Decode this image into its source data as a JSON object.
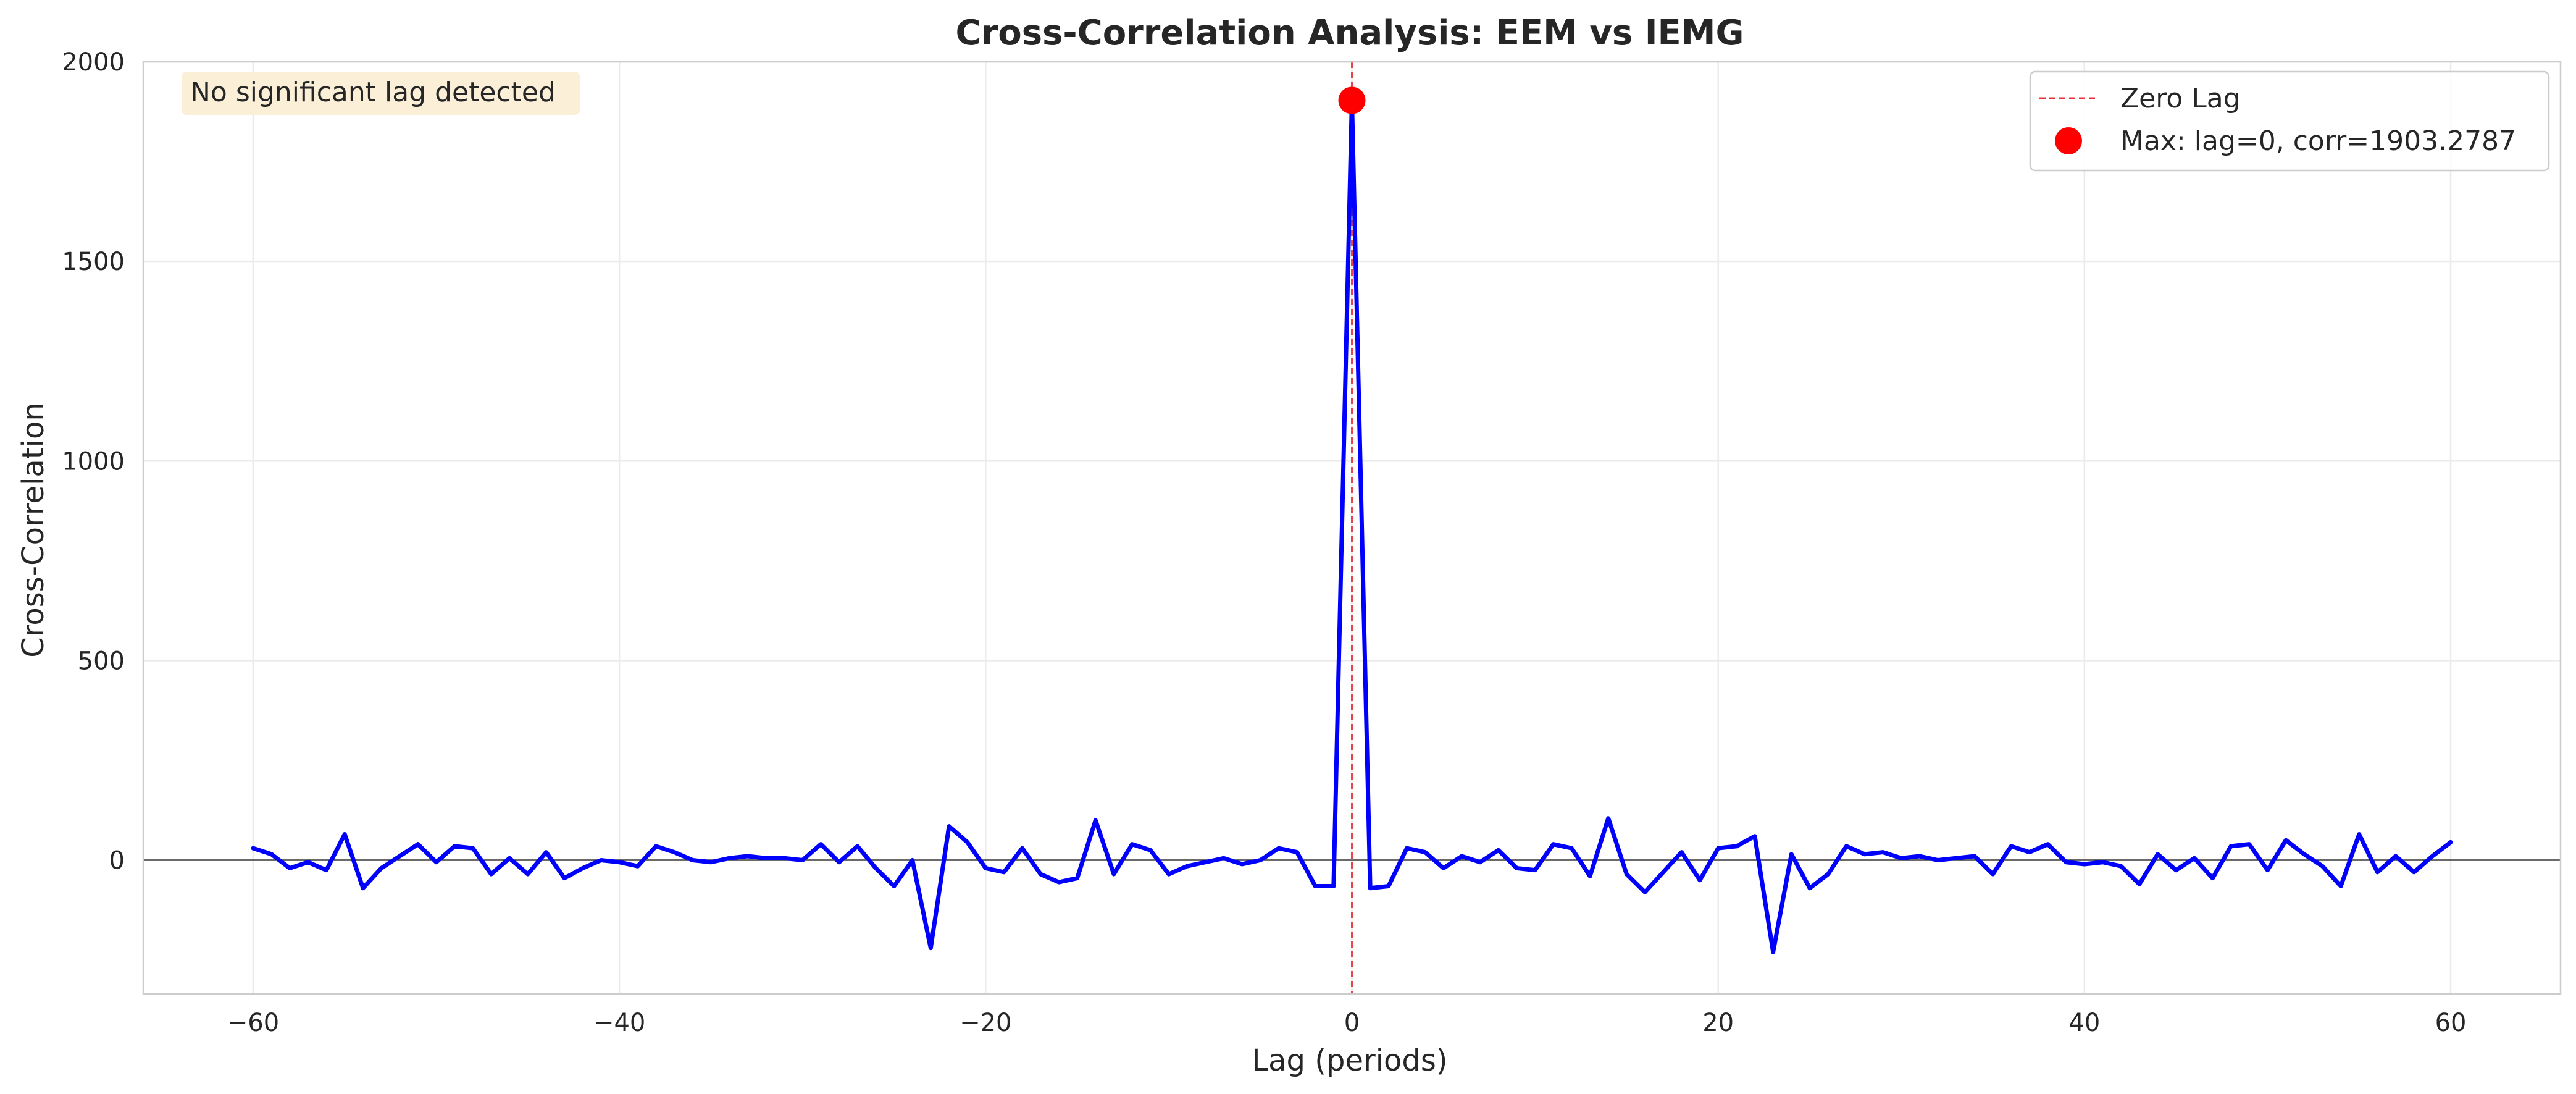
{
  "chart_data": {
    "type": "line",
    "title": "Cross-Correlation Analysis: EEM vs IEMG",
    "xlabel": "Lag (periods)",
    "ylabel": "Cross-Correlation",
    "xlim": [
      -66,
      66
    ],
    "ylim": [
      -335,
      2000
    ],
    "x_ticks": [
      -60,
      -40,
      -20,
      0,
      20,
      40,
      60
    ],
    "x_tick_labels": [
      "−60",
      "−40",
      "−20",
      "0",
      "20",
      "40",
      "60"
    ],
    "y_ticks": [
      0,
      500,
      1000,
      1500,
      2000
    ],
    "y_tick_labels": [
      "0",
      "500",
      "1000",
      "1500",
      "2000"
    ],
    "grid": true,
    "legend_position": "top-right",
    "series": [
      {
        "line_color": "#0000ff",
        "x": [
          -60,
          -59,
          -58,
          -57,
          -56,
          -55,
          -54,
          -53,
          -52,
          -51,
          -50,
          -49,
          -48,
          -47,
          -46,
          -45,
          -44,
          -43,
          -42,
          -41,
          -40,
          -39,
          -38,
          -37,
          -36,
          -35,
          -34,
          -33,
          -32,
          -31,
          -30,
          -29,
          -28,
          -27,
          -26,
          -25,
          -24,
          -23,
          -22,
          -21,
          -20,
          -19,
          -18,
          -17,
          -16,
          -15,
          -14,
          -13,
          -12,
          -11,
          -10,
          -9,
          -8,
          -7,
          -6,
          -5,
          -4,
          -3,
          -2,
          -1,
          0,
          1,
          2,
          3,
          4,
          5,
          6,
          7,
          8,
          9,
          10,
          11,
          12,
          13,
          14,
          15,
          16,
          17,
          18,
          19,
          20,
          21,
          22,
          23,
          24,
          25,
          26,
          27,
          28,
          29,
          30,
          31,
          32,
          33,
          34,
          35,
          36,
          37,
          38,
          39,
          40,
          41,
          42,
          43,
          44,
          45,
          46,
          47,
          48,
          49,
          50,
          51,
          52,
          53,
          54,
          55,
          56,
          57,
          58,
          59,
          60
        ],
        "values": [
          30,
          15,
          -20,
          -5,
          -25,
          65,
          -70,
          -20,
          10,
          40,
          -5,
          35,
          30,
          -35,
          5,
          -35,
          20,
          -45,
          -20,
          0,
          -5,
          -15,
          35,
          20,
          0,
          -5,
          5,
          10,
          5,
          5,
          0,
          40,
          -5,
          35,
          -20,
          -65,
          0,
          -220,
          85,
          45,
          -20,
          -30,
          30,
          -35,
          -55,
          -45,
          100,
          -35,
          40,
          25,
          -35,
          -15,
          -5,
          5,
          -10,
          0,
          30,
          20,
          -65,
          -65,
          1903.2787,
          -70,
          -65,
          30,
          20,
          -20,
          10,
          -5,
          25,
          -20,
          -25,
          40,
          30,
          -40,
          105,
          -35,
          -80,
          -30,
          20,
          -50,
          30,
          35,
          60,
          -230,
          15,
          -70,
          -35,
          35,
          15,
          20,
          5,
          10,
          0,
          5,
          10,
          -35,
          35,
          20,
          40,
          -5,
          -10,
          -5,
          -15,
          -60,
          15,
          -25,
          5,
          -45,
          35,
          40,
          -25,
          50,
          15,
          -15,
          -65,
          65,
          -30,
          10,
          -30,
          10,
          45
        ]
      }
    ],
    "max_point": {
      "x": 0,
      "y": 1903.2787,
      "color": "#ff0000"
    },
    "zero_lag_line": {
      "x": 0,
      "color": "#e8313a"
    },
    "legend": [
      {
        "label": "Zero Lag",
        "marker": "dashed-line",
        "color": "#e8313a"
      },
      {
        "label": "Max: lag=0, corr=1903.2787",
        "marker": "circle",
        "color": "#ff0000"
      }
    ],
    "annotation": {
      "text": "No significant lag detected",
      "position": "top-left",
      "background": "#fbeed6"
    }
  }
}
